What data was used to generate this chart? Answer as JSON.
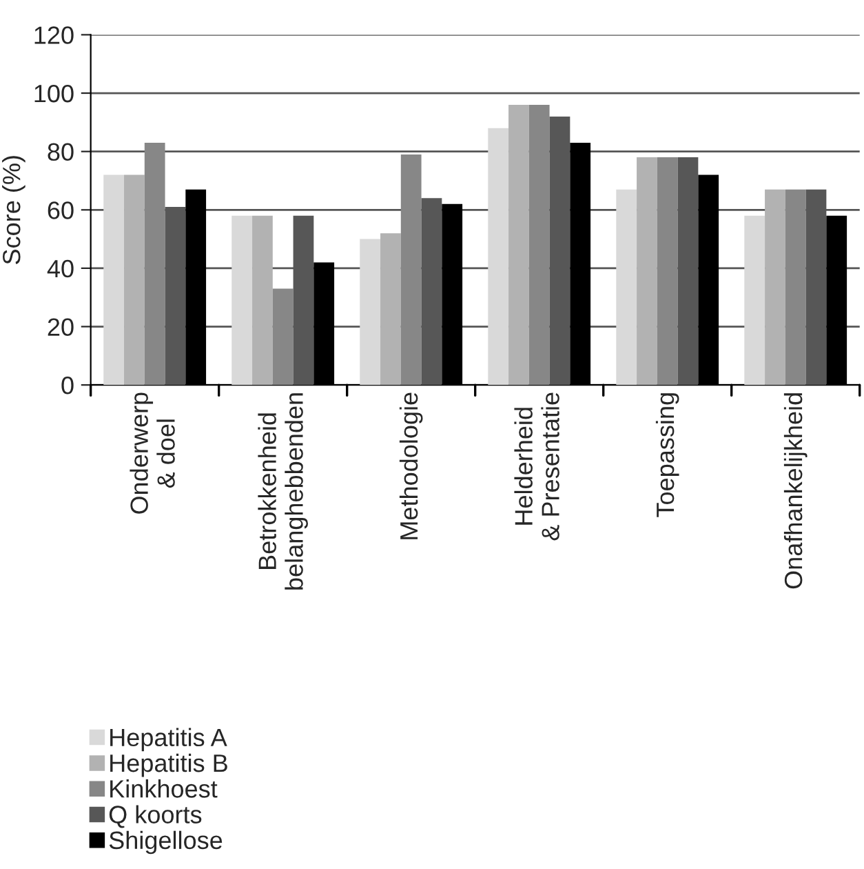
{
  "chart_data": {
    "type": "bar",
    "ylabel": "Score (%)",
    "categories": [
      "Onderwerp\n& doel",
      "Betrokkenheid\nbelanghebbenden",
      "Methodologie",
      "Helderheid\n& Presentatie",
      "Toepassing",
      "Onafhankelijkheid"
    ],
    "series": [
      {
        "name": "Hepatitis A",
        "color": "#d9d9d9",
        "values": [
          72,
          58,
          50,
          88,
          67,
          58
        ]
      },
      {
        "name": "Hepatitis B",
        "color": "#b2b2b2",
        "values": [
          72,
          58,
          52,
          96,
          78,
          67
        ]
      },
      {
        "name": "Kinkhoest",
        "color": "#878787",
        "values": [
          83,
          33,
          79,
          96,
          78,
          67
        ]
      },
      {
        "name": "Q koorts",
        "color": "#575757",
        "values": [
          61,
          58,
          64,
          92,
          78,
          67
        ]
      },
      {
        "name": "Shigellose",
        "color": "#000000",
        "values": [
          67,
          42,
          62,
          83,
          72,
          58
        ]
      }
    ],
    "ylim": [
      0,
      120
    ],
    "yticks": [
      0,
      20,
      40,
      60,
      80,
      100,
      120
    ],
    "grid": "y",
    "legend": "bottom left"
  }
}
